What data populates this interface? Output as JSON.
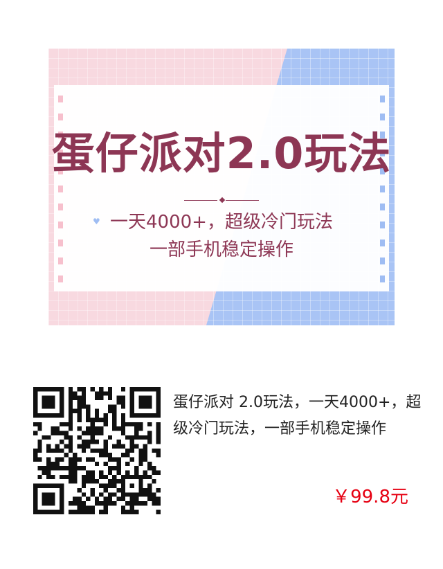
{
  "banner": {
    "title": "蛋仔派对2.0玩法",
    "subtitle_line1": "一天4000+，超级冷门玩法",
    "subtitle_line2": "一部手机稳定操作"
  },
  "qr_code": {
    "icon": "qr-code-icon"
  },
  "product": {
    "description": "蛋仔派对 2.0玩法，一天4000+，超级冷门玩法，一部手机稳定操作",
    "price": "￥99.8元"
  },
  "colors": {
    "title": "#8d3654",
    "price": "#e60012",
    "banner_pink": "#f8d9e0",
    "banner_blue": "#a9c4f5"
  }
}
